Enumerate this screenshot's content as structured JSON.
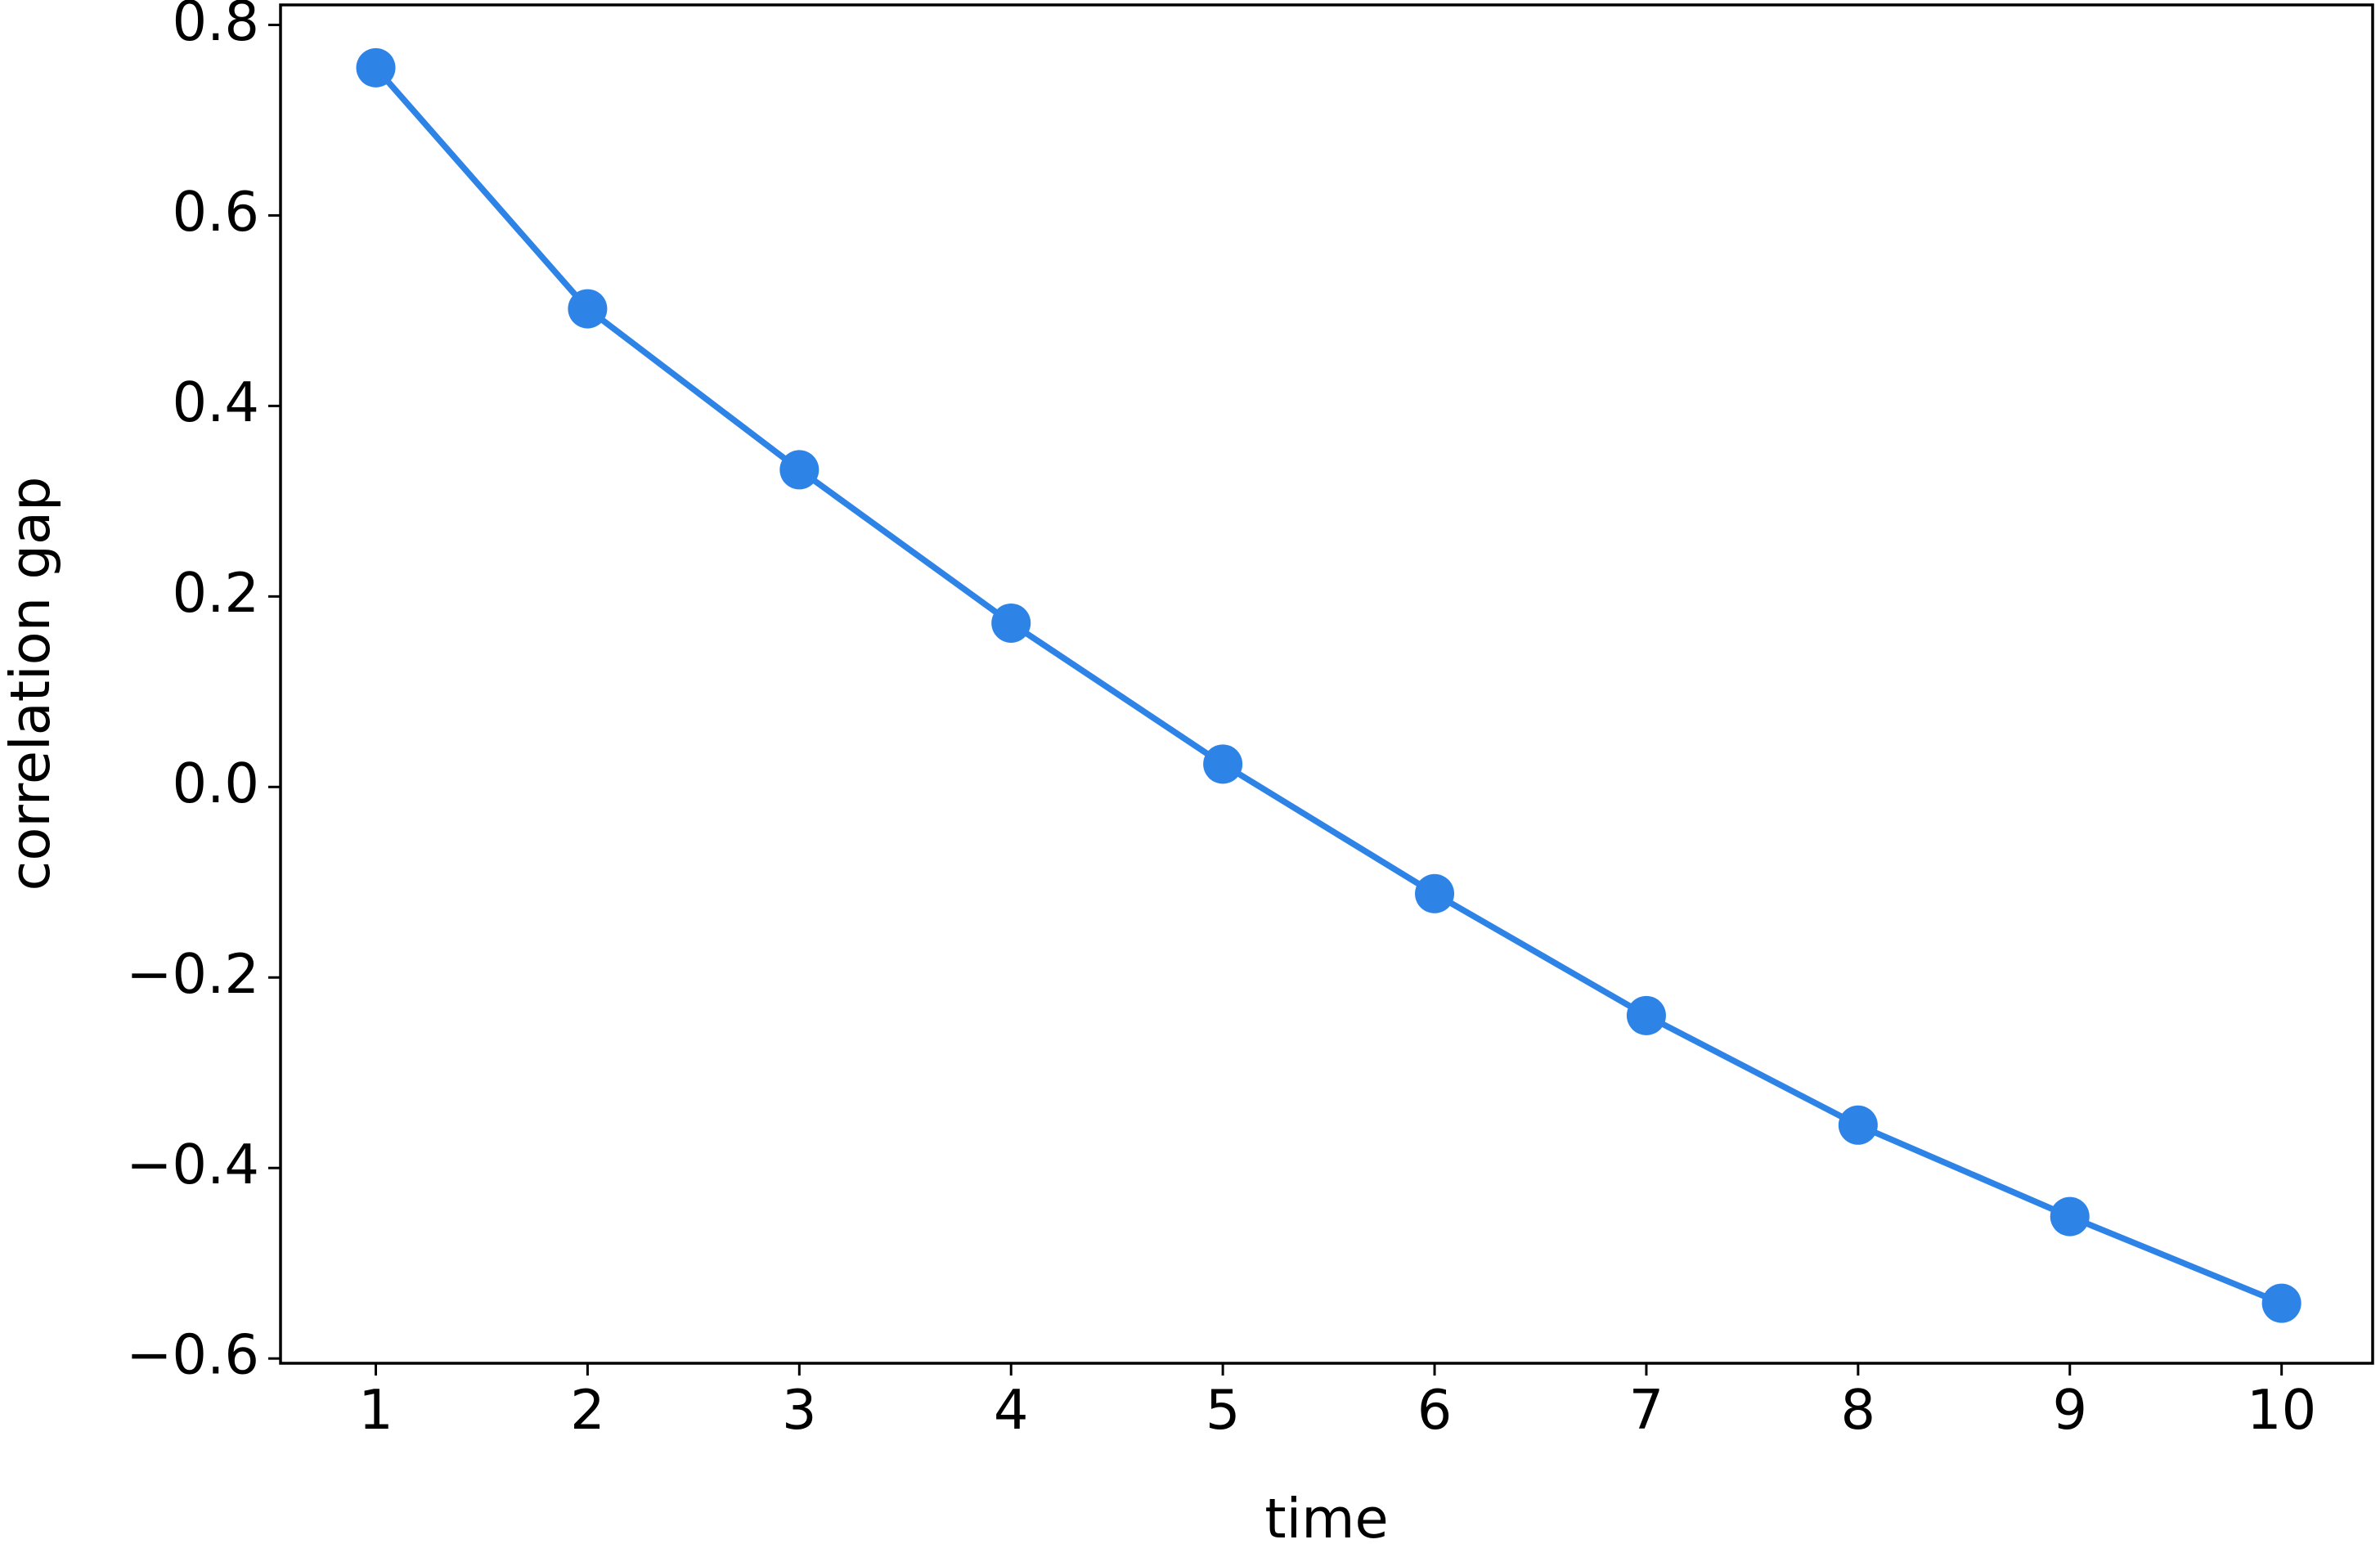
{
  "chart_data": {
    "type": "line",
    "x_label": "time",
    "y_label": "correlation gap",
    "x": [
      1,
      2,
      3,
      4,
      5,
      6,
      7,
      8,
      9,
      10
    ],
    "series": [
      {
        "color": "#2e83e6",
        "values": [
          0.755,
          0.502,
          0.333,
          0.172,
          0.024,
          -0.112,
          -0.24,
          -0.355,
          -0.451,
          -0.542
        ]
      }
    ],
    "xlim": [
      0.55,
      10.43
    ],
    "ylim": [
      -0.605,
      0.821
    ],
    "xticks": [
      1,
      2,
      3,
      4,
      5,
      6,
      7,
      8,
      9,
      10
    ],
    "yticks": [
      {
        "value": -0.6,
        "label": "−0.6"
      },
      {
        "value": -0.4,
        "label": "−0.4"
      },
      {
        "value": -0.2,
        "label": "−0.2"
      },
      {
        "value": 0,
        "label": "0.0"
      },
      0.2,
      0.4,
      0.6,
      0.8
    ],
    "grid": false
  }
}
